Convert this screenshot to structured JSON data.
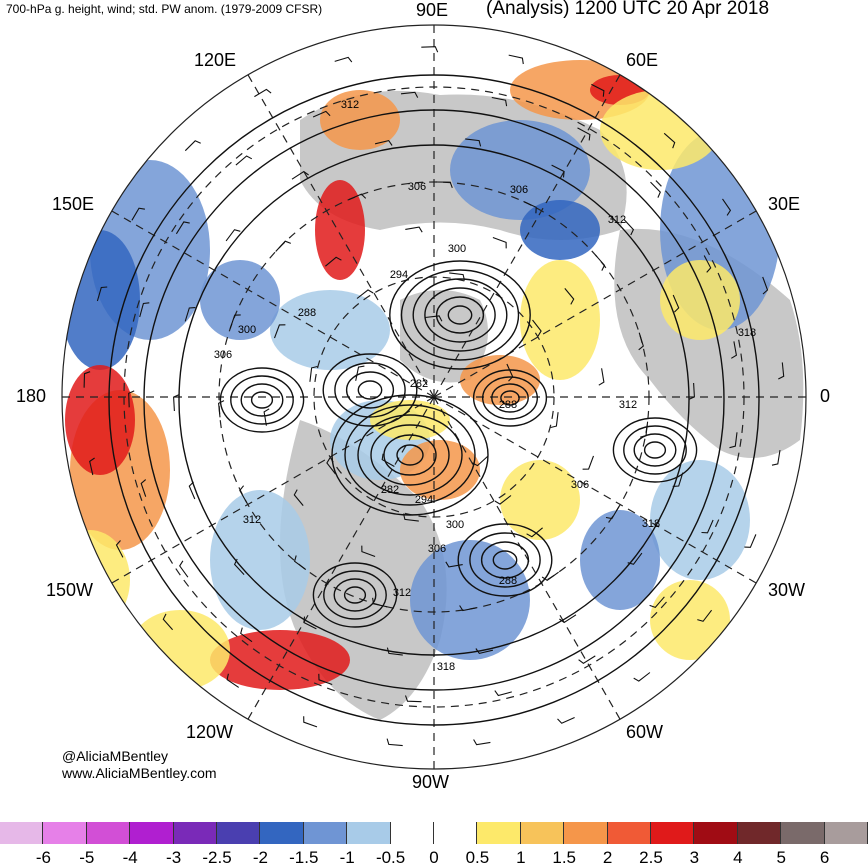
{
  "header": {
    "title_left": "700-hPa g. height, wind; std. PW anom. (1979-2009 CFSR)",
    "title_right": "(Analysis) 1200 UTC 20 Apr 2018"
  },
  "longitude_labels": {
    "e90": "90E",
    "e60": "60E",
    "e30": "30E",
    "zero": "0",
    "w30": "30W",
    "w60": "60W",
    "w90": "90W",
    "w120": "120W",
    "w150": "150W",
    "deg180": "180",
    "e150": "150E",
    "e120": "120E"
  },
  "contour_labels": [
    "312",
    "306",
    "306",
    "312",
    "300",
    "294",
    "288",
    "300",
    "306",
    "282",
    "288",
    "312",
    "318",
    "282",
    "294",
    "300",
    "306",
    "306",
    "318",
    "312",
    "288",
    "312",
    "318"
  ],
  "credits": {
    "handle": "@AliciaMBentley",
    "website": "www.AliciaMBentley.com"
  },
  "colorbar": {
    "ticks": [
      "-6",
      "-5",
      "-4",
      "-3",
      "-2.5",
      "-2",
      "-1.5",
      "-1",
      "-0.5",
      "0",
      "0.5",
      "1",
      "1.5",
      "2",
      "2.5",
      "3",
      "4",
      "5",
      "6"
    ],
    "colors": [
      "#e6b8e8",
      "#e680e8",
      "#d24fd6",
      "#b01fd0",
      "#7a2ab8",
      "#4a3fb0",
      "#3366c0",
      "#6f95d4",
      "#a8cbe8",
      "#ffffff",
      "#ffffff",
      "#fde96a",
      "#f7c35a",
      "#f5964a",
      "#f05a36",
      "#e01a1a",
      "#a00c14",
      "#70282a",
      "#7a6a6a",
      "#a89c9c"
    ]
  },
  "map_colors": {
    "land": "#c8c8c8",
    "blue_anom": "#6f95d4",
    "light_blue_anom": "#a8cbe8",
    "dark_blue_anom": "#3366c0",
    "yellow_anom": "#fde96a",
    "orange_anom": "#f5964a",
    "red_anom": "#e01a1a",
    "dark_red_anom": "#a00c14"
  }
}
